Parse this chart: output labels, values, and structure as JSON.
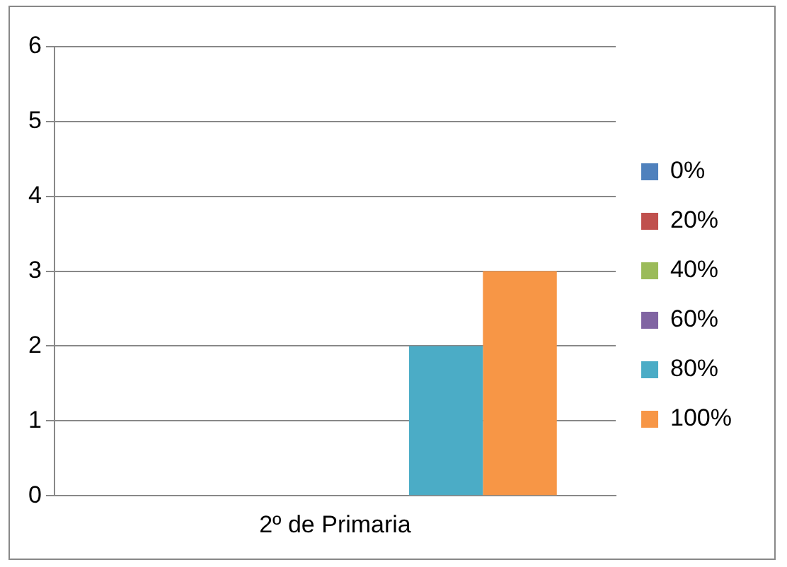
{
  "chart_data": {
    "type": "bar",
    "categories": [
      "2º de Primaria"
    ],
    "series": [
      {
        "name": "0%",
        "color": "#4f81bd",
        "values": [
          0
        ]
      },
      {
        "name": "20%",
        "color": "#c0504d",
        "values": [
          0
        ]
      },
      {
        "name": "40%",
        "color": "#9bbb59",
        "values": [
          0
        ]
      },
      {
        "name": "60%",
        "color": "#8064a2",
        "values": [
          0
        ]
      },
      {
        "name": "80%",
        "color": "#4bacc6",
        "values": [
          2
        ]
      },
      {
        "name": "100%",
        "color": "#f79646",
        "values": [
          3
        ]
      }
    ],
    "ylim": [
      0,
      6
    ],
    "yticks": [
      0,
      1,
      2,
      3,
      4,
      5,
      6
    ],
    "grid": "y",
    "legend": "right"
  }
}
